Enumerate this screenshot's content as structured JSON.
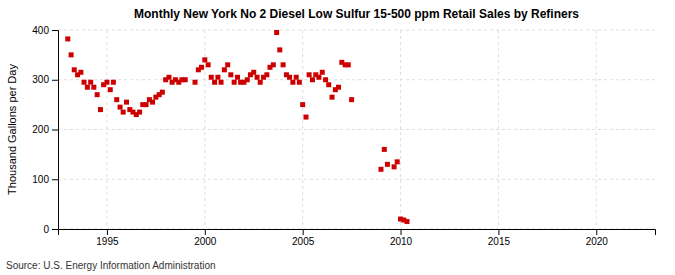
{
  "chart_data": {
    "type": "scatter",
    "title": "Monthly New York No 2 Diesel Low Sulfur 15-500 ppm Retail Sales by Refiners",
    "y_label": "Thousand Gallons per Day",
    "source": "Source: U.S. Energy Information Administration",
    "color": "#CC0000",
    "marker": "square",
    "grid": true,
    "xlim": [
      1992.5,
      2023.0
    ],
    "ylim": [
      0,
      400
    ],
    "xticks": [
      1995,
      2000,
      2005,
      2010,
      2015,
      2020
    ],
    "yticks": [
      0,
      100,
      200,
      300,
      400
    ],
    "x": [
      1993.0,
      1993.17,
      1993.33,
      1993.5,
      1993.67,
      1993.83,
      1994.0,
      1994.17,
      1994.33,
      1994.5,
      1994.67,
      1994.83,
      1995.0,
      1995.17,
      1995.33,
      1995.5,
      1995.67,
      1995.83,
      1996.0,
      1996.17,
      1996.33,
      1996.5,
      1996.67,
      1996.83,
      1997.0,
      1997.17,
      1997.33,
      1997.5,
      1997.67,
      1997.83,
      1998.0,
      1998.17,
      1998.33,
      1998.5,
      1998.67,
      1998.83,
      1999.0,
      1999.5,
      1999.67,
      1999.83,
      2000.0,
      2000.17,
      2000.33,
      2000.5,
      2000.67,
      2000.83,
      2001.0,
      2001.17,
      2001.33,
      2001.5,
      2001.67,
      2001.83,
      2002.0,
      2002.17,
      2002.33,
      2002.5,
      2002.67,
      2002.83,
      2003.0,
      2003.17,
      2003.33,
      2003.5,
      2003.67,
      2003.83,
      2004.0,
      2004.17,
      2004.33,
      2004.5,
      2004.67,
      2004.83,
      2005.0,
      2005.17,
      2005.33,
      2005.5,
      2005.67,
      2005.83,
      2006.0,
      2006.17,
      2006.33,
      2006.5,
      2006.67,
      2006.83,
      2007.0,
      2007.17,
      2007.33,
      2007.5,
      2009.0,
      2009.17,
      2009.33,
      2009.67,
      2009.83,
      2010.0,
      2010.17,
      2010.33
    ],
    "values": [
      382,
      350,
      320,
      310,
      315,
      295,
      285,
      295,
      285,
      270,
      240,
      290,
      295,
      280,
      295,
      260,
      245,
      235,
      255,
      240,
      235,
      230,
      235,
      250,
      250,
      260,
      255,
      265,
      270,
      275,
      300,
      305,
      295,
      300,
      295,
      300,
      300,
      295,
      320,
      325,
      340,
      330,
      305,
      295,
      305,
      295,
      320,
      330,
      310,
      295,
      305,
      295,
      295,
      300,
      310,
      315,
      305,
      295,
      305,
      310,
      325,
      330,
      395,
      360,
      330,
      310,
      305,
      295,
      305,
      295,
      250,
      225,
      310,
      300,
      310,
      305,
      315,
      300,
      290,
      265,
      280,
      285,
      335,
      330,
      330,
      260,
      120,
      160,
      130,
      125,
      135,
      20,
      18,
      15
    ]
  }
}
